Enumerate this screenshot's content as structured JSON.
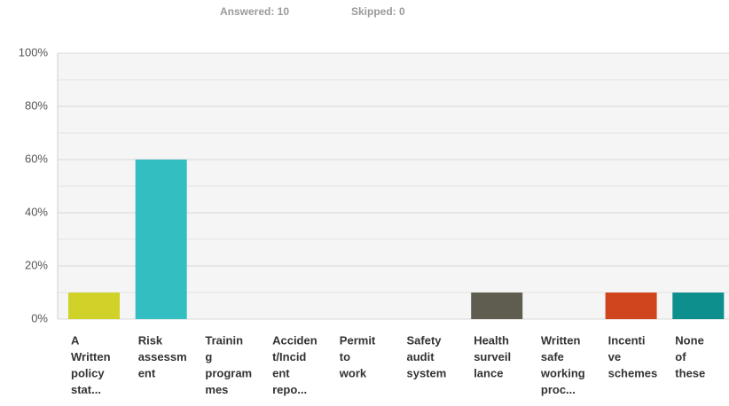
{
  "chart_data": {
    "type": "bar",
    "subtitle": [
      "Answered: 10",
      "Skipped: 0"
    ],
    "categories": [
      [
        "A",
        "Written",
        "policy",
        "stat..."
      ],
      [
        "Risk",
        "assessm",
        "ent"
      ],
      [
        "Trainin",
        "g",
        "program",
        "mes"
      ],
      [
        "Acciden",
        "t/Incid",
        "ent",
        "repo..."
      ],
      [
        "Permit",
        "to",
        "work"
      ],
      [
        "Safety",
        "audit",
        "system"
      ],
      [
        "Health",
        "surveil",
        "lance"
      ],
      [
        "Written",
        "safe",
        "working",
        "proc..."
      ],
      [
        "Incenti",
        "ve",
        "schemes"
      ],
      [
        "None",
        "of",
        "these"
      ]
    ],
    "values": [
      10,
      60,
      0,
      0,
      0,
      0,
      10,
      0,
      10,
      10
    ],
    "colors": [
      "#d0d22a",
      "#33bfc1",
      "#6c8ebf",
      "#a36bb0",
      "#e8a33d",
      "#7fb06b",
      "#5f5d4f",
      "#c9a14a",
      "#d0451d",
      "#0d8f8e"
    ],
    "ylim": [
      0,
      100
    ],
    "yticks": [
      {
        "value": 0,
        "label": "0%"
      },
      {
        "value": 20,
        "label": "20%"
      },
      {
        "value": 40,
        "label": "40%"
      },
      {
        "value": 60,
        "label": "60%"
      },
      {
        "value": 80,
        "label": "80%"
      },
      {
        "value": 100,
        "label": "100%"
      }
    ],
    "minor_yticks": [
      10,
      30,
      50,
      70,
      90
    ],
    "grid": true
  }
}
